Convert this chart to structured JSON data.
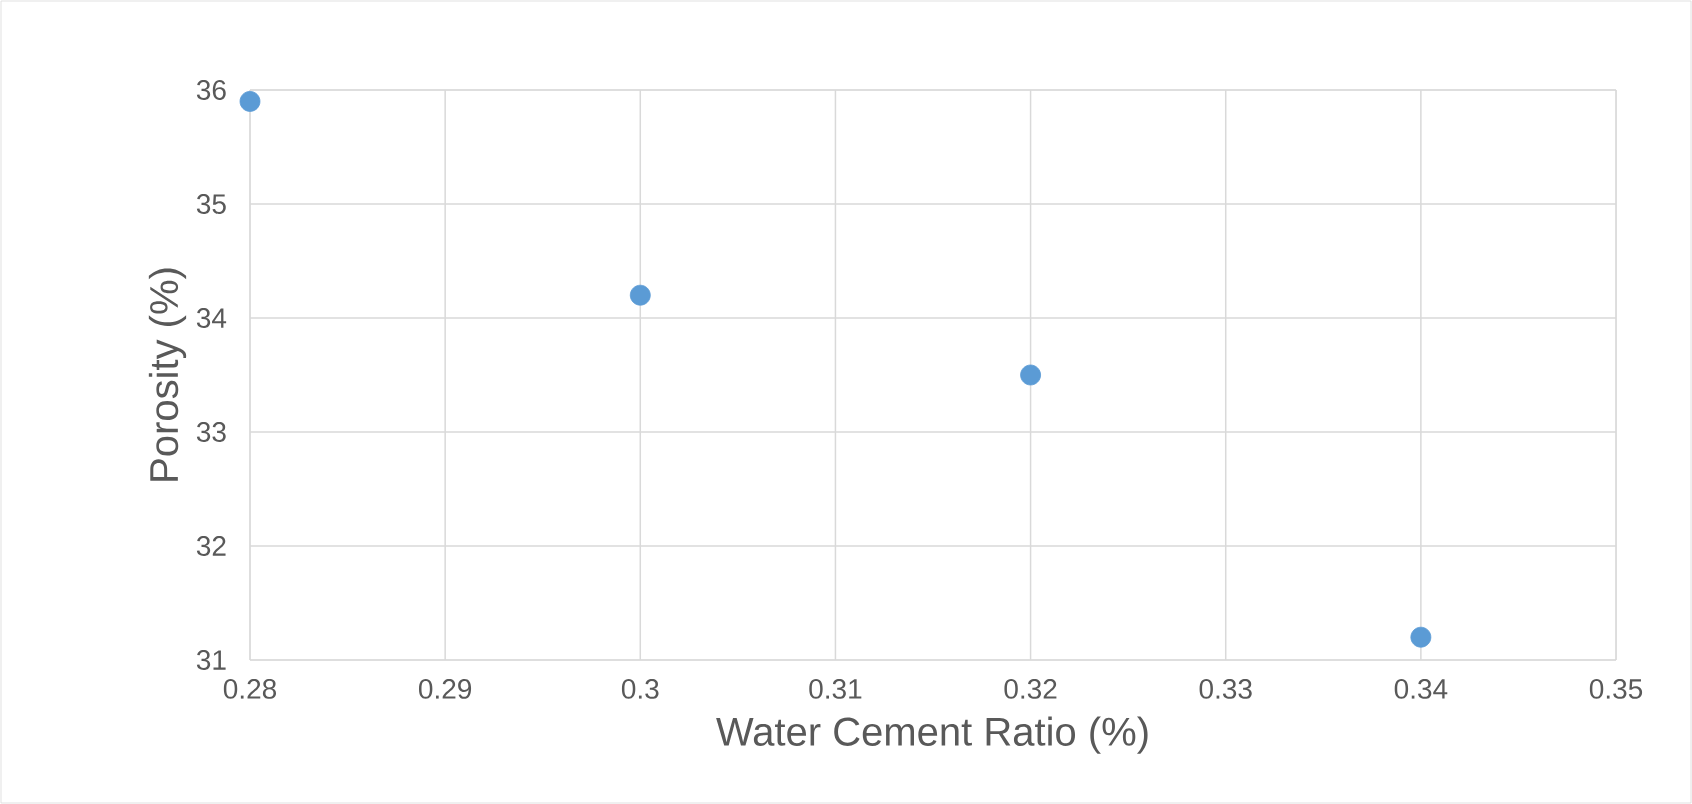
{
  "chart_data": {
    "type": "scatter",
    "xlabel": "Water Cement Ratio (%)",
    "ylabel": "Porosity (%)",
    "x": [
      0.28,
      0.3,
      0.32,
      0.34
    ],
    "series": [
      {
        "color": "#5b9bd5",
        "values": [
          35.9,
          34.2,
          33.5,
          31.2
        ]
      }
    ],
    "xlim": [
      0.28,
      0.35
    ],
    "xticks": [
      0.28,
      0.29,
      0.3,
      0.31,
      0.32,
      0.33,
      0.34,
      0.35
    ],
    "ylim": [
      31,
      36
    ],
    "yticks": [
      31,
      32,
      33,
      34,
      35,
      36
    ],
    "grid": true,
    "marker": "circle"
  }
}
